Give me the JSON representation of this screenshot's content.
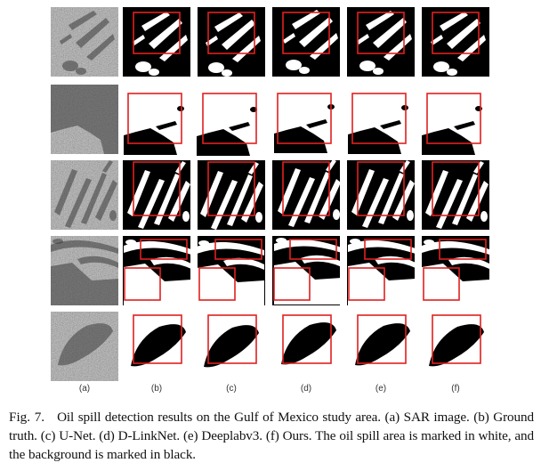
{
  "figure": {
    "column_labels": [
      "(a)",
      "(b)",
      "(c)",
      "(d)",
      "(e)",
      "(f)"
    ],
    "row_count": 5,
    "colors": {
      "oil_spill": "#ffffff",
      "background": "#000000",
      "highlight_box": "#e0201f"
    }
  },
  "caption": {
    "fig_label": "Fig. 7.",
    "text": "Oil spill detection results on the Gulf of Mexico study area. (a) SAR image. (b) Ground truth. (c) U-Net. (d) D-LinkNet. (e) Deeplabv3. (f) Ours. The oil spill area is marked in white, and the background is marked in black."
  }
}
